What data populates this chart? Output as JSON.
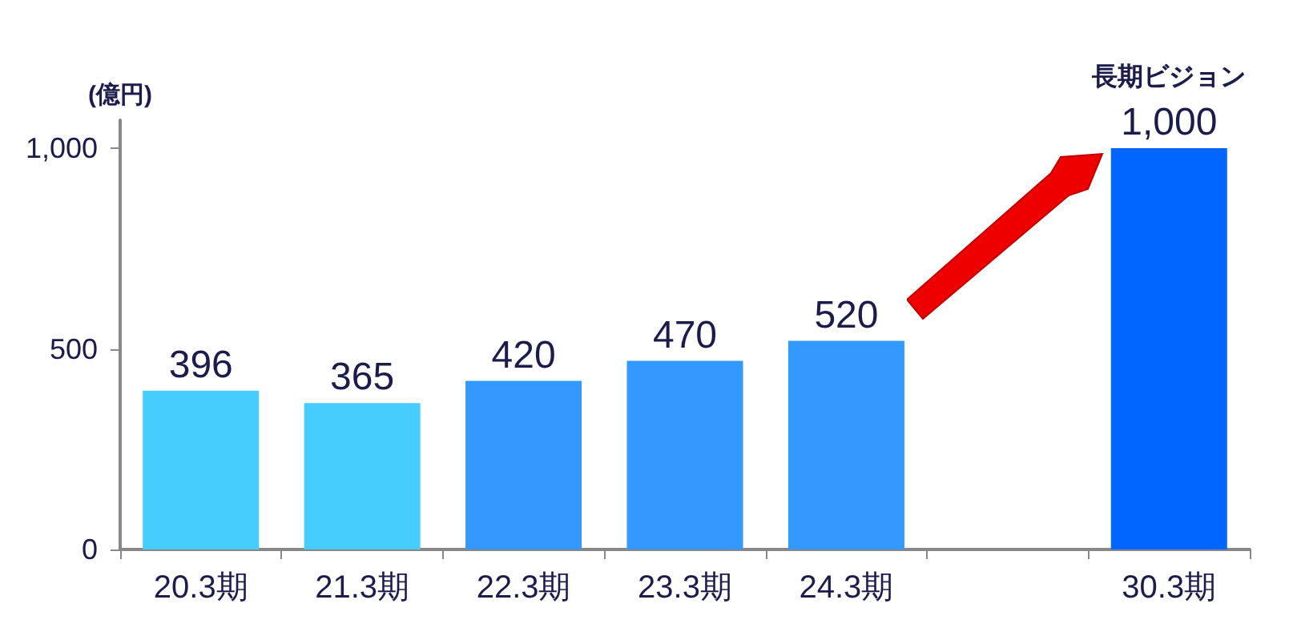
{
  "chart_data": {
    "type": "bar",
    "ylabel": "(億円)",
    "categories": [
      "20.3期",
      "21.3期",
      "22.3期",
      "23.3期",
      "24.3期",
      null,
      "30.3期"
    ],
    "values": [
      396,
      365,
      420,
      470,
      520,
      null,
      1000
    ],
    "value_labels": [
      "396",
      "365",
      "420",
      "470",
      "520",
      null,
      "1,000"
    ],
    "colors": [
      "#47cdfd",
      "#47cdfd",
      "#3399ff",
      "#3399ff",
      "#3399ff",
      "#3399ff",
      "#0066ff"
    ],
    "ylim": [
      0,
      1070
    ],
    "yticks": [
      0,
      500,
      {
        "value": 1000,
        "label": "1,000"
      }
    ],
    "annotations": [
      {
        "text": "長期ビジョン",
        "x": "30.3期",
        "y": 1000
      }
    ]
  }
}
